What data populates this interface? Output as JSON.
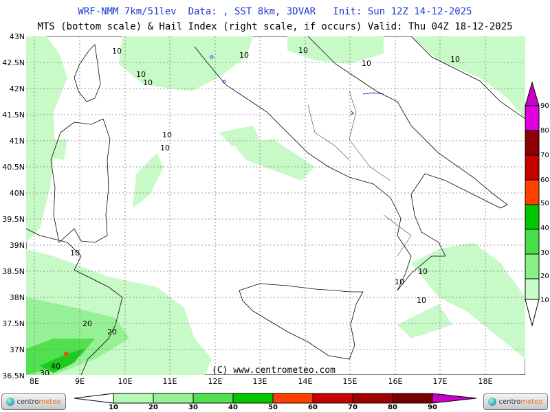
{
  "header": {
    "line1": "WRF-NMM 7km/51lev  Data: , SST 8km, 3DVAR   Init: Sun 12Z 14-12-2025",
    "line2": "MTS (bottom scale) & Hail Index (right scale, if occurs) Valid: Thu 04Z 18-12-2025"
  },
  "lat_labels": [
    "43N",
    "42.5N",
    "42N",
    "41.5N",
    "41N",
    "40.5N",
    "40N",
    "39.5N",
    "39N",
    "38.5N",
    "38N",
    "37.5N",
    "37N",
    "36.5N"
  ],
  "lon_labels": [
    "8E",
    "9E",
    "10E",
    "11E",
    "12E",
    "13E",
    "14E",
    "15E",
    "16E",
    "17E",
    "18E"
  ],
  "right_scale": {
    "labels": [
      "90",
      "80",
      "70",
      "60",
      "50",
      "40",
      "30",
      "20",
      "10"
    ],
    "colors": [
      "#c800c8",
      "#e000e0",
      "#8c0000",
      "#c80000",
      "#ff4000",
      "#00c800",
      "#48e048",
      "#88f088",
      "#c8fcc8",
      "#ffffff"
    ]
  },
  "bottom_scale": {
    "labels": [
      "10",
      "20",
      "30",
      "40",
      "50",
      "60",
      "70",
      "80",
      "90"
    ],
    "colors": [
      "#b4fab4",
      "#96f096",
      "#50e050",
      "#00c800",
      "#ff4000",
      "#c80000",
      "#a00000",
      "#780000",
      "#c800c8"
    ]
  },
  "contour_labels": [
    "10",
    "10",
    "10",
    "10",
    "10",
    "10",
    "10",
    "10",
    "10",
    "10",
    "10",
    "10",
    "10",
    "20",
    "20",
    "30",
    "40"
  ],
  "copyright": "(C) www.centrometeo.com",
  "logo": {
    "prefix": "centro",
    "accent": "meteo"
  },
  "colors": {
    "field_light": "#c8fac8",
    "field_mid": "#96f096",
    "field_dark": "#50e050",
    "field_strong": "#1ec81e",
    "coast": "#000000",
    "grid": "#666666",
    "title_blue": "#1a3ad0"
  }
}
